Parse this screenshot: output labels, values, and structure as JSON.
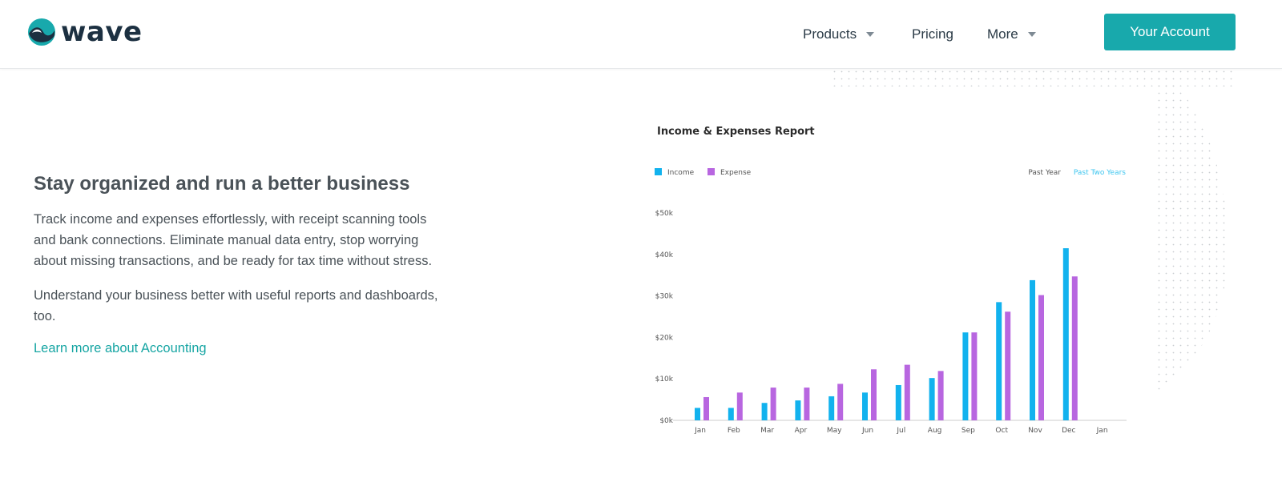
{
  "brand": {
    "name": "wave",
    "accent": "#18a9ac",
    "dark": "#1c3041"
  },
  "nav": {
    "items": [
      {
        "label": "Products",
        "has_dropdown": true
      },
      {
        "label": "Pricing",
        "has_dropdown": false
      },
      {
        "label": "More",
        "has_dropdown": true
      }
    ],
    "account_label": "Your Account"
  },
  "hero": {
    "headline": "Stay organized and run a better business",
    "paragraph1": "Track income and expenses effortlessly, with receipt scanning tools and bank connections. Eliminate manual data entry, stop worrying about missing transactions, and be ready for tax time without stress.",
    "paragraph2": "Understand your business better with useful reports and dashboards, too.",
    "link_label": "Learn more about Accounting"
  },
  "chart_data": {
    "type": "bar",
    "title": "Income & Expenses Report",
    "range_options": [
      "Past Year",
      "Past Two Years"
    ],
    "active_range": "Past Two Years",
    "categories": [
      "Jan",
      "Feb",
      "Mar",
      "Apr",
      "May",
      "Jun",
      "Jul",
      "Aug",
      "Sep",
      "Oct",
      "Nov",
      "Dec",
      "Jan"
    ],
    "series": [
      {
        "name": "Income",
        "color": "#12b2ee",
        "values": [
          3000,
          3000,
          4200,
          4800,
          5800,
          6700,
          8500,
          10200,
          21200,
          28500,
          33800,
          41500,
          null
        ]
      },
      {
        "name": "Expense",
        "color": "#b866e0",
        "values": [
          5600,
          6700,
          7900,
          7900,
          8800,
          12300,
          13400,
          11900,
          21200,
          26200,
          30200,
          34700,
          null
        ]
      }
    ],
    "y_ticks": [
      "$0k",
      "$10k",
      "$20k",
      "$30k",
      "$40k",
      "$50k"
    ],
    "ylim": [
      0,
      50000
    ],
    "legend_position": "top-left",
    "grid": false
  }
}
